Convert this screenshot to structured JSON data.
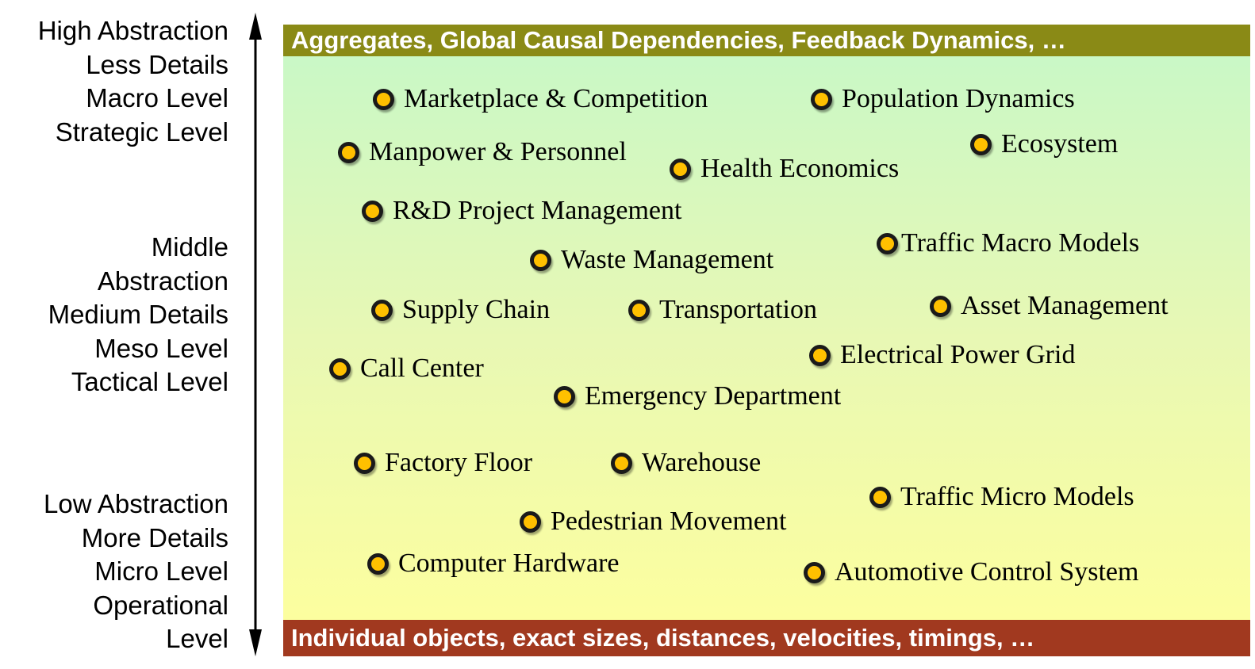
{
  "left_axis": {
    "high": [
      "High Abstraction",
      "Less Details",
      "Macro Level",
      "Strategic Level"
    ],
    "middle": [
      "Middle",
      "Abstraction",
      "Medium Details",
      "Meso Level",
      "Tactical Level"
    ],
    "low": [
      "Low Abstraction",
      "More Details",
      "Micro Level",
      "Operational",
      "Level"
    ]
  },
  "top_bar": "Aggregates, Global Causal Dependencies, Feedback Dynamics, …",
  "bottom_bar": "Individual objects, exact sizes, distances, velocities, timings, …",
  "items": [
    "Marketplace & Competition",
    "Population Dynamics",
    "Manpower & Personnel",
    "Health Economics",
    "Ecosystem",
    "R&D Project Management",
    "Traffic Macro Models",
    "Waste Management",
    "Supply Chain",
    "Transportation",
    "Asset Management",
    "Call Center",
    "Electrical Power Grid",
    "Emergency Department",
    "Factory Floor",
    "Warehouse",
    "Traffic Micro Models",
    "Pedestrian Movement",
    "Computer Hardware",
    "Automotive Control System"
  ],
  "colors": {
    "top_bar": "#8a8a16",
    "bottom_bar": "#a1391f",
    "gradient_top": "#c6f8c8",
    "gradient_bottom": "#ffff9c",
    "bullet_fill": "#ffc000",
    "bullet_ring": "#1a1a1a"
  },
  "icons": {
    "axis": "double-headed-vertical-arrow-icon",
    "bullet": "bullet-dot-icon"
  }
}
